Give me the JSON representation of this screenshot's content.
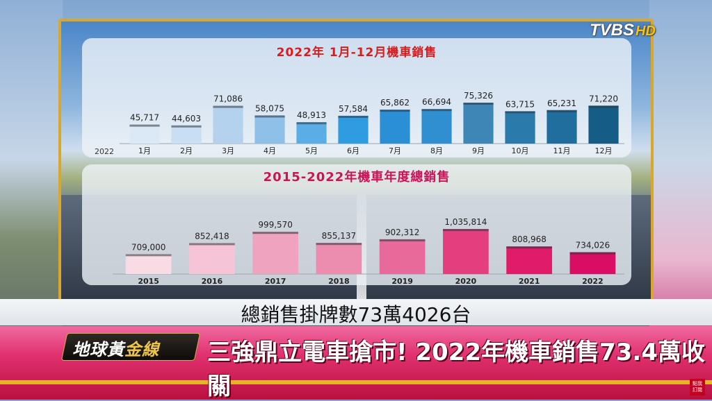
{
  "logo": {
    "brand": "TVBS",
    "hd": "HD"
  },
  "caption": "總銷售掛牌數73萬4026台",
  "ticker": {
    "show_prefix": "地球黃",
    "show_suffix": "金線",
    "headline": "三強鼎立電車搶市! 2022年機車銷售73.4萬收關",
    "corner_label": "點我 訂閱"
  },
  "chart_data": [
    {
      "type": "bar",
      "title": "2022年 1月-12月機車銷售",
      "axis_label": "2022",
      "categories": [
        "1月",
        "2月",
        "3月",
        "4月",
        "5月",
        "6月",
        "7月",
        "8月",
        "9月",
        "10月",
        "11月",
        "12月"
      ],
      "values": [
        45717,
        44603,
        71086,
        58075,
        48913,
        57584,
        65862,
        66694,
        75326,
        63715,
        65231,
        71220
      ],
      "value_labels": [
        "45,717",
        "44,603",
        "71,086",
        "58,075",
        "48,913",
        "57,584",
        "65,862",
        "66,694",
        "75,326",
        "63,715",
        "65,231",
        "71,220"
      ],
      "colors": [
        "#dbe9f6",
        "#c9def2",
        "#b4d2ee",
        "#8fc0e8",
        "#5aaee6",
        "#2f9be0",
        "#2b8fd6",
        "#2f8fd0",
        "#3d86b6",
        "#2a7bab",
        "#1f6e9d",
        "#155d86"
      ],
      "ylim": [
        20000,
        80000
      ]
    },
    {
      "type": "bar",
      "title": "2015-2022年機車年度總銷售",
      "categories": [
        "2015",
        "2016",
        "2017",
        "2018",
        "2019",
        "2020",
        "2021",
        "2022"
      ],
      "values": [
        709000,
        852418,
        999570,
        855137,
        902312,
        1035814,
        808968,
        734026
      ],
      "value_labels": [
        "709,000",
        "852,418",
        "999,570",
        "855,137",
        "902,312",
        "1,035,814",
        "808,968",
        "734,026"
      ],
      "colors": [
        "#f8dbe5",
        "#f5c4d6",
        "#f0a3bf",
        "#ec8db0",
        "#e86a9a",
        "#e53e7f",
        "#e01c6a",
        "#d80d63"
      ],
      "ylim": [
        450000,
        1100000
      ]
    }
  ]
}
